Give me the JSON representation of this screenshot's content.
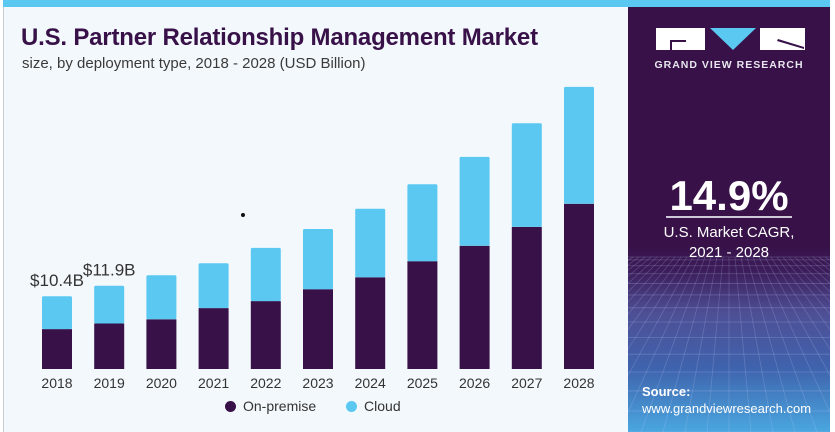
{
  "header": {
    "title": "U.S. Partner Relationship Management Market",
    "subtitle": "size, by deployment type, 2018 - 2028 (USD Billion)"
  },
  "panel": {
    "brand": "GRAND VIEW RESEARCH",
    "cagr_value": "14.9%",
    "cagr_label_line1": "U.S. Market CAGR,",
    "cagr_label_line2": "2021 - 2028",
    "source_label": "Source:",
    "source_url": "www.grandviewresearch.com"
  },
  "colors": {
    "on_premise": "#371148",
    "cloud": "#5bc8f2",
    "accent_bar": "#5bc8f2",
    "panel_bg": "#371148"
  },
  "legend": [
    {
      "name": "On-premise",
      "color": "#371148"
    },
    {
      "name": "Cloud",
      "color": "#5bc8f2"
    }
  ],
  "chart_data": {
    "type": "bar",
    "stacked": true,
    "title": "U.S. Partner Relationship Management Market",
    "subtitle": "size, by deployment type, 2018 - 2028 (USD Billion)",
    "xlabel": "",
    "ylabel": "USD Billion",
    "categories": [
      "2018",
      "2019",
      "2020",
      "2021",
      "2022",
      "2023",
      "2024",
      "2025",
      "2026",
      "2027",
      "2028"
    ],
    "series": [
      {
        "name": "On-premise",
        "color": "#371148",
        "values": [
          5.7,
          6.5,
          7.1,
          8.7,
          9.7,
          11.4,
          13.1,
          15.4,
          17.6,
          20.3,
          23.6
        ]
      },
      {
        "name": "Cloud",
        "color": "#5bc8f2",
        "values": [
          4.7,
          5.4,
          6.3,
          6.4,
          7.6,
          8.6,
          9.8,
          11.0,
          12.7,
          14.8,
          16.7
        ]
      }
    ],
    "annotations": [
      {
        "category": "2018",
        "text": "$10.4B"
      },
      {
        "category": "2019",
        "text": "$11.9B"
      }
    ],
    "ylim": [
      0,
      42
    ],
    "grid": false,
    "legend_position": "bottom-center"
  }
}
